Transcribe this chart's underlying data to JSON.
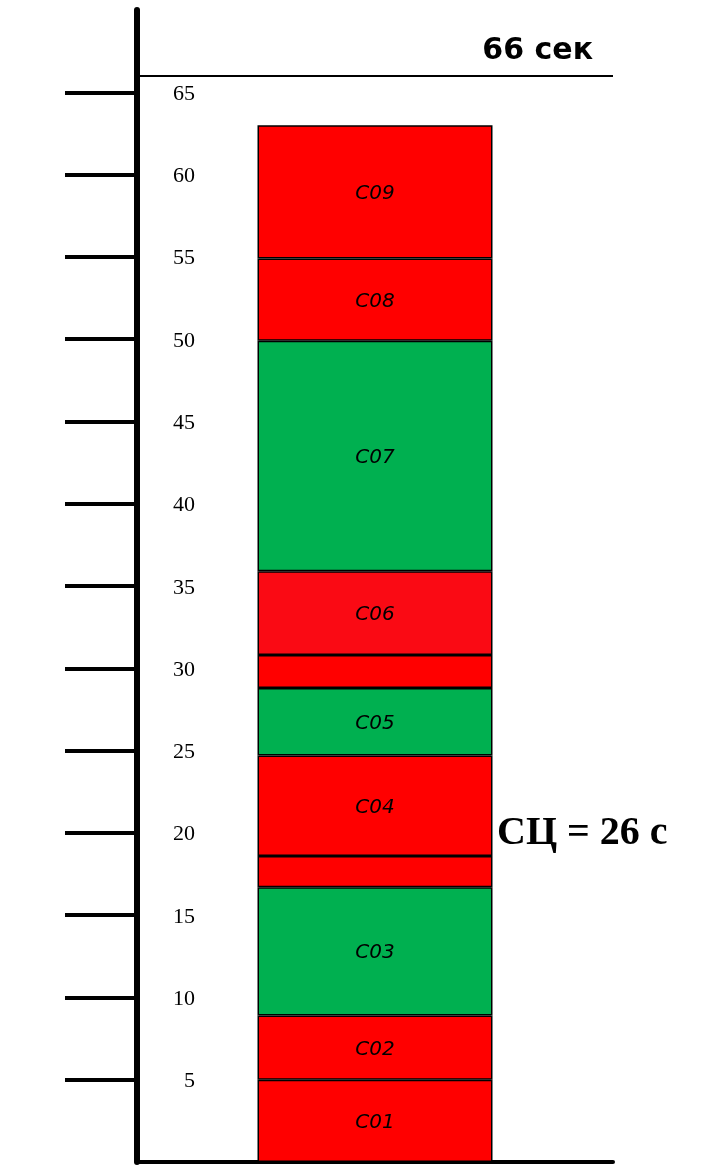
{
  "chart_data": {
    "type": "bar",
    "stacked": true,
    "categories": [
      null
    ],
    "series": [
      {
        "name": "C01",
        "color": "#ff0000",
        "values": [
          5
        ]
      },
      {
        "name": "C02",
        "color": "#ff0000",
        "values": [
          3.9
        ]
      },
      {
        "name": "C03",
        "color": "#00b050",
        "values": [
          7.8
        ]
      },
      {
        "color": "#ff0000",
        "values": [
          1.9
        ]
      },
      {
        "name": "C04",
        "color": "#ff0000",
        "values": [
          6.1
        ]
      },
      {
        "name": "C05",
        "color": "#00b050",
        "values": [
          4.1
        ]
      },
      {
        "color": "#ff0000",
        "values": [
          2
        ]
      },
      {
        "name": "C06",
        "color": "#fa0a14",
        "values": [
          5.1
        ]
      },
      {
        "name": "C07",
        "color": "#00b050",
        "values": [
          14
        ]
      },
      {
        "name": "C08",
        "color": "#ff0000",
        "values": [
          5
        ]
      },
      {
        "name": "C09",
        "color": "#ff0000",
        "values": [
          8.1
        ]
      }
    ],
    "ylim": [
      0,
      70
    ],
    "yticks": [
      5,
      10,
      15,
      20,
      25,
      30,
      35,
      40,
      45,
      50,
      55,
      60,
      65
    ],
    "tick_labels": "y",
    "grid": false,
    "legend": false,
    "ref_lines": [
      {
        "axis": "y",
        "value": 66,
        "label": "66 сек",
        "color": "#000000"
      }
    ],
    "annotations": [
      "СЦ = 26 с"
    ]
  }
}
